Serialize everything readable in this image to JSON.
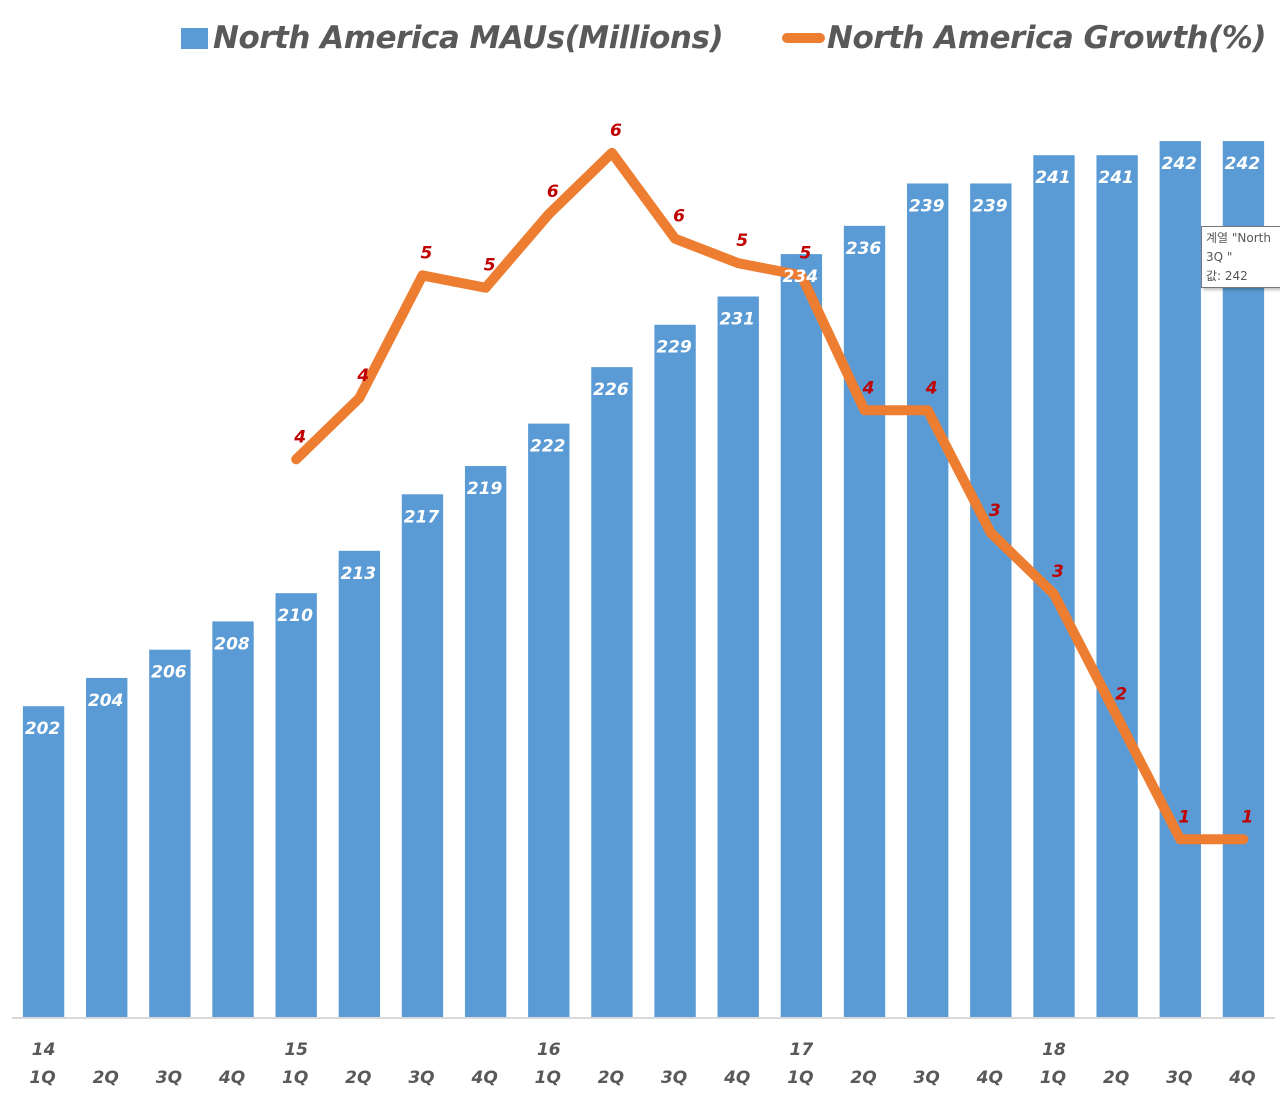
{
  "chart_data": {
    "type": "bar",
    "title": "",
    "xlabel": "",
    "ylabel": "",
    "categories": [
      "1Q",
      "2Q",
      "3Q",
      "4Q",
      "1Q",
      "2Q",
      "3Q",
      "4Q",
      "1Q",
      "2Q",
      "3Q",
      "4Q",
      "1Q",
      "2Q",
      "3Q",
      "4Q",
      "1Q",
      "2Q",
      "3Q",
      "4Q"
    ],
    "year_labels": [
      "14",
      "",
      "",
      "",
      "15",
      "",
      "",
      "",
      "16",
      "",
      "",
      "",
      "17",
      "",
      "",
      "",
      "18",
      "",
      "",
      ""
    ],
    "series": [
      {
        "name": "North America MAUs(Millions)",
        "type": "bar",
        "axis": "primary",
        "color": "#5b9bd5",
        "values": [
          202,
          204,
          206,
          208,
          210,
          213,
          217,
          219,
          222,
          226,
          229,
          231,
          234,
          236,
          239,
          239,
          241,
          241,
          242,
          242
        ],
        "labels": [
          "202",
          "204",
          "206",
          "208",
          "210",
          "213",
          "217",
          "219",
          "222",
          "226",
          "229",
          "231",
          "234",
          "236",
          "239",
          "239",
          "241",
          "241",
          "242",
          "242"
        ]
      },
      {
        "name": "North America Growth(%)",
        "type": "line",
        "axis": "secondary",
        "color": "#ed7d31",
        "values": [
          null,
          null,
          null,
          null,
          3.8,
          4.3,
          5.3,
          5.2,
          5.8,
          6.3,
          5.6,
          5.4,
          5.3,
          4.2,
          4.2,
          3.2,
          2.7,
          1.7,
          0.7,
          0.7
        ],
        "labels": [
          "",
          "",
          "",
          "",
          "4",
          "4",
          "5",
          "5",
          "6",
          "6",
          "6",
          "5",
          "5",
          "4",
          "4",
          "3",
          "3",
          "2",
          "1",
          "1"
        ]
      }
    ],
    "ylim": [
      180,
      244.2
    ],
    "y2lim": [
      -0.75,
      6.65
    ],
    "grid": false,
    "y_axis_visible": false,
    "legend": "top",
    "label_colors": {
      "bar": "#ffffff",
      "line": "#c00000",
      "axis": "#595959"
    }
  },
  "legend": {
    "bar_label": "North America MAUs(Millions)",
    "line_label": "North America Growth(%)"
  },
  "tooltip": {
    "line1": "계열 \"North",
    "line2": "3Q \"",
    "line3": "값: 242"
  }
}
